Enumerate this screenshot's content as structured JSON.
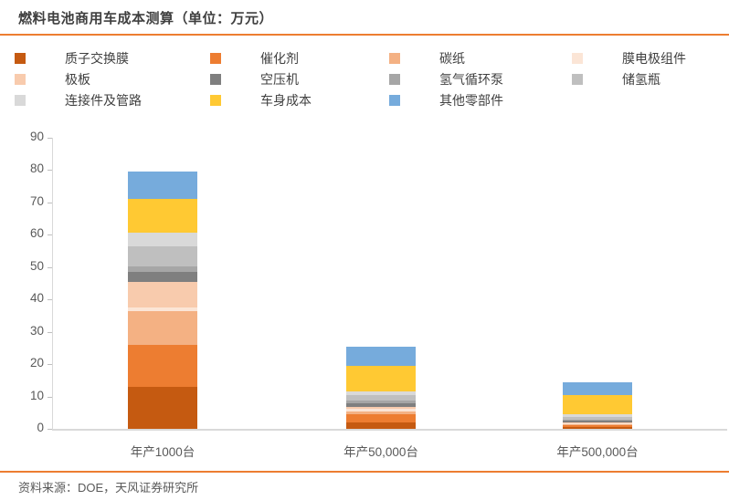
{
  "title": "燃料电池商用车成本测算（单位：万元）",
  "accent_color": "#ED7D31",
  "source": "资料来源：DOE，天风证券研究所",
  "chart_data": {
    "type": "bar",
    "stacked": true,
    "title": "燃料电池商用车成本测算",
    "unit_label": "万元",
    "categories": [
      "年产1000台",
      "年产50,000台",
      "年产500,000台"
    ],
    "series": [
      {
        "name": "质子交换膜",
        "color": "#C55A11",
        "values": [
          13.0,
          2.0,
          0.5
        ]
      },
      {
        "name": "催化剂",
        "color": "#ED7D31",
        "values": [
          13.0,
          2.5,
          0.7
        ]
      },
      {
        "name": "碳纸",
        "color": "#F4B183",
        "values": [
          10.5,
          0.9,
          0.3
        ]
      },
      {
        "name": "膜电极组件",
        "color": "#FBE5D6",
        "values": [
          0.9,
          0.7,
          0.3
        ]
      },
      {
        "name": "极板",
        "color": "#F8CBAD",
        "values": [
          8.1,
          0.6,
          0.3
        ]
      },
      {
        "name": "空压机",
        "color": "#7F7F7F",
        "values": [
          2.9,
          1.3,
          0.5
        ]
      },
      {
        "name": "氢气循环泵",
        "color": "#A6A6A6",
        "values": [
          1.9,
          0.8,
          0.2
        ]
      },
      {
        "name": "储氢瓶",
        "color": "#BFBFBF",
        "values": [
          6.0,
          1.7,
          0.9
        ]
      },
      {
        "name": "连接件及管路",
        "color": "#D9D9D9",
        "values": [
          4.4,
          1.1,
          0.7
        ]
      },
      {
        "name": "车身成本",
        "color": "#FFC933",
        "values": [
          10.3,
          8.0,
          5.9
        ]
      },
      {
        "name": "其他零部件",
        "color": "#76ABDC",
        "values": [
          8.6,
          5.9,
          4.0
        ]
      }
    ],
    "ylim": [
      0,
      90
    ],
    "yticks": [
      0,
      10,
      20,
      30,
      40,
      50,
      60,
      70,
      80,
      90
    ],
    "grid": false,
    "legend_position": "top"
  }
}
